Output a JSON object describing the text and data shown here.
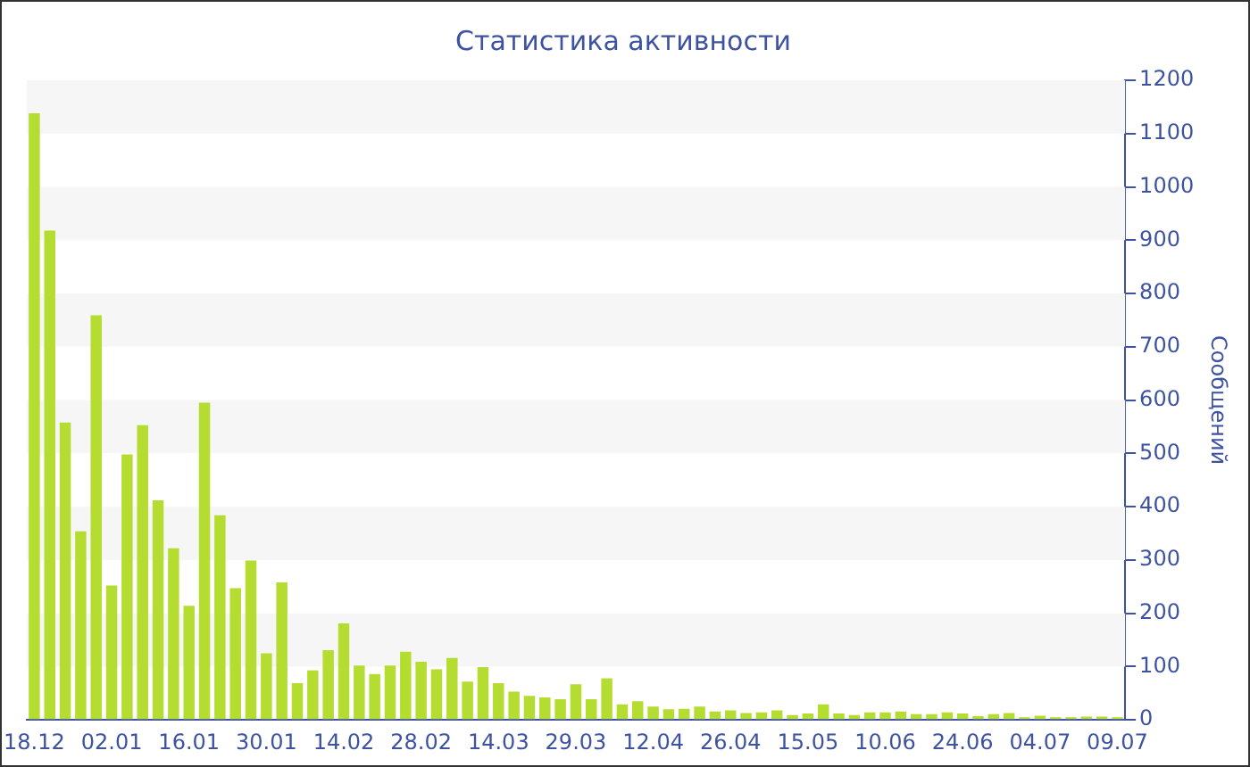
{
  "chart_data": {
    "type": "bar",
    "title": "Статистика активности",
    "ylabel": "Сообщений",
    "categories": [
      "18.12",
      null,
      null,
      null,
      null,
      "02.01",
      null,
      null,
      null,
      null,
      "16.01",
      null,
      null,
      null,
      null,
      "30.01",
      null,
      null,
      null,
      null,
      "14.02",
      null,
      null,
      null,
      null,
      "28.02",
      null,
      null,
      null,
      null,
      "14.03",
      null,
      null,
      null,
      null,
      "29.03",
      null,
      null,
      null,
      null,
      "12.04",
      null,
      null,
      null,
      null,
      "26.04",
      null,
      null,
      null,
      null,
      "15.05",
      null,
      null,
      null,
      null,
      "10.06",
      null,
      null,
      null,
      null,
      "24.06",
      null,
      null,
      null,
      null,
      "04.07",
      null,
      null,
      null,
      null,
      "09.07"
    ],
    "values": [
      1138,
      918,
      558,
      354,
      759,
      252,
      498,
      553,
      412,
      322,
      214,
      595,
      384,
      247,
      299,
      125,
      258,
      69,
      93,
      131,
      181,
      102,
      86,
      102,
      128,
      109,
      95,
      116,
      72,
      99,
      69,
      53,
      45,
      42,
      39,
      67,
      39,
      78,
      29,
      35,
      25,
      20,
      21,
      25,
      16,
      18,
      13,
      14,
      18,
      9,
      12,
      29,
      12,
      9,
      14,
      14,
      16,
      11,
      11,
      14,
      12,
      7,
      11,
      13,
      5,
      8,
      5,
      5,
      6,
      6,
      5
    ],
    "color": "#b5dc30",
    "ylim": [
      0,
      1200
    ],
    "yticks": [
      0,
      100,
      200,
      300,
      400,
      500,
      600,
      700,
      800,
      900,
      1000,
      1100,
      1200
    ]
  }
}
